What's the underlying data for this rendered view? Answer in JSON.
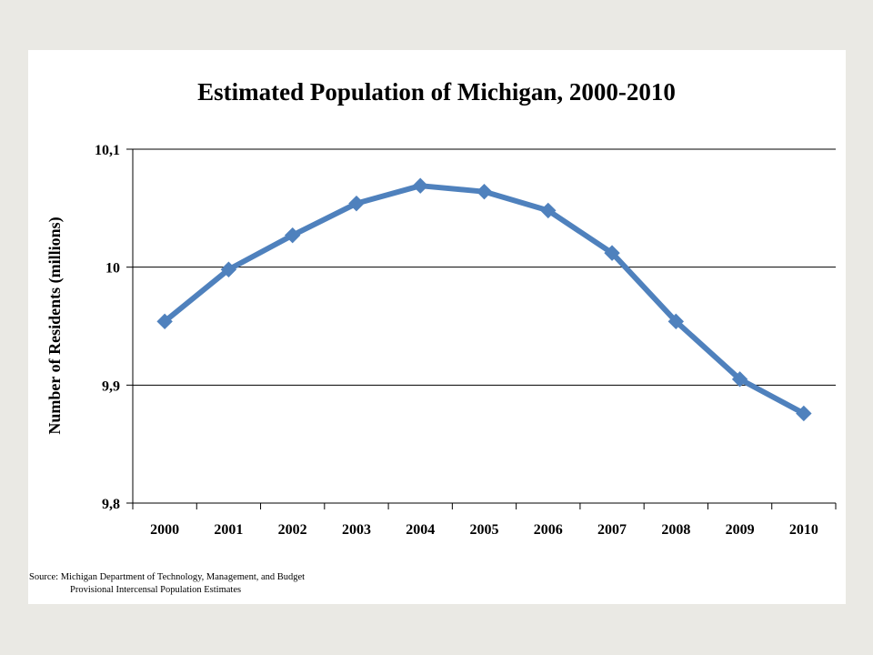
{
  "chart_data": {
    "type": "line",
    "title": "Estimated Population of Michigan, 2000-2010",
    "xlabel": "",
    "ylabel": "Number of Residents (millions)",
    "categories": [
      "2000",
      "2001",
      "2002",
      "2003",
      "2004",
      "2005",
      "2006",
      "2007",
      "2008",
      "2009",
      "2010"
    ],
    "series": [
      {
        "values": [
          9.954,
          9.998,
          10.027,
          10.054,
          10.069,
          10.064,
          10.048,
          10.012,
          9.954,
          9.905,
          9.876
        ],
        "color": "#4f81bd"
      }
    ],
    "ylim": [
      9.8,
      10.1
    ],
    "yticks": [
      {
        "value": 9.8,
        "label": "9,8"
      },
      {
        "value": 9.9,
        "label": "9,9"
      },
      {
        "value": 10.0,
        "label": "10"
      },
      {
        "value": 10.1,
        "label": "10,1"
      }
    ],
    "grid": true,
    "marker": "diamond"
  },
  "source": {
    "line1": "Source: Michigan Department of Technology, Management, and Budget",
    "line2": "Provisional Intercensal Population Estimates"
  }
}
